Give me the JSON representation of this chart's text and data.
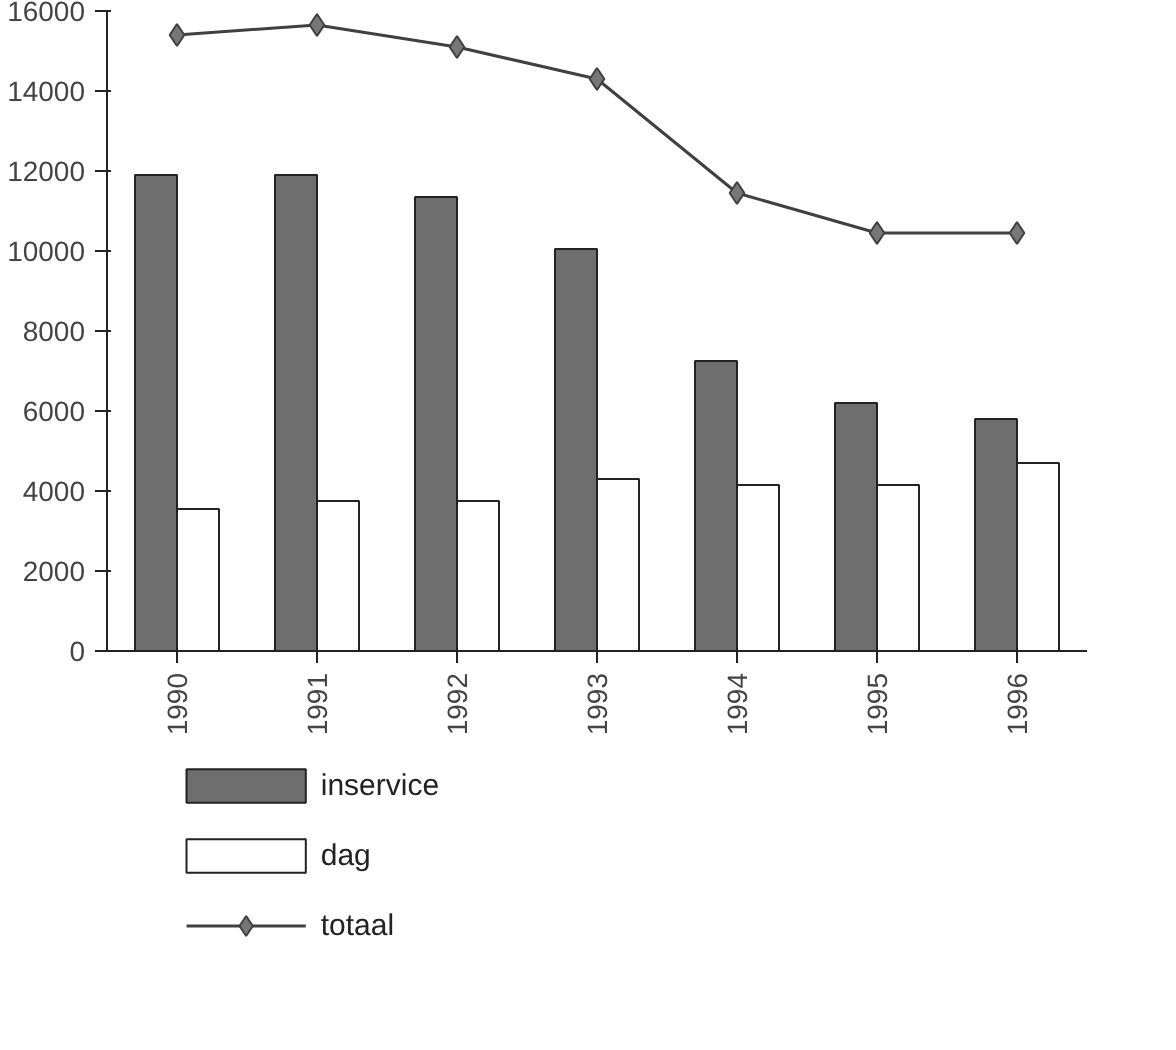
{
  "chart_data": {
    "type": "bar",
    "categories": [
      "1990",
      "1991",
      "1992",
      "1993",
      "1994",
      "1995",
      "1996"
    ],
    "series": [
      {
        "name": "inservice",
        "color": "#6e6e6e",
        "values": [
          11900,
          11900,
          11350,
          10050,
          7250,
          6200,
          5800
        ]
      },
      {
        "name": "dag",
        "color": "#ffffff",
        "values": [
          3550,
          3750,
          3750,
          4300,
          4150,
          4150,
          4700
        ]
      },
      {
        "name": "totaal",
        "type": "line",
        "color": "#404040",
        "values": [
          15400,
          15650,
          15100,
          14300,
          11450,
          10450,
          10450
        ]
      }
    ],
    "ylim": [
      0,
      16000
    ],
    "yticks": [
      0,
      2000,
      4000,
      6000,
      8000,
      10000,
      12000,
      14000,
      16000
    ],
    "grid": false,
    "legend": "bottom",
    "marker": "diamond",
    "line_style": "solid"
  }
}
